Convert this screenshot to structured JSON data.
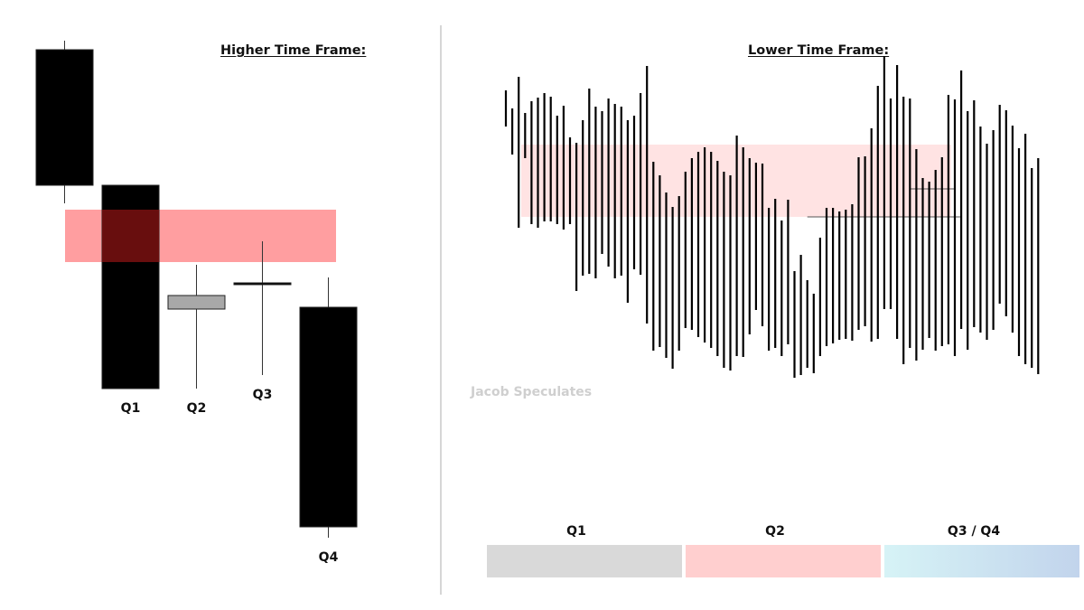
{
  "chart_data": [
    {
      "type": "candlestick",
      "title": "Higher Time Frame:",
      "y_direction": "price",
      "candles": [
        {
          "label": "",
          "open": 595,
          "close": 445,
          "high": 605,
          "low": 425,
          "color": "#000000"
        },
        {
          "label": "Q1",
          "open": 445,
          "close": 220,
          "high": 445,
          "low": 220,
          "color": "#000000"
        },
        {
          "label": "Q2",
          "open": 308,
          "close": 323,
          "high": 357,
          "low": 220,
          "color": "#a8a8a8"
        },
        {
          "label": "Q3",
          "open": 337,
          "close": 337,
          "high": 383,
          "low": 235,
          "color": "#000000"
        },
        {
          "label": "Q4",
          "open": 310,
          "close": 67,
          "high": 343,
          "low": 55,
          "color": "#000000"
        }
      ],
      "zone": {
        "from": 360,
        "to": 418,
        "color": "#ff9ea0"
      }
    },
    {
      "type": "bar",
      "title": "Lower Time Frame:",
      "y_direction": "price",
      "bars": [
        [
          560,
          600
        ],
        [
          529,
          580
        ],
        [
          448,
          615
        ],
        [
          525,
          575
        ],
        [
          452,
          588
        ],
        [
          448,
          592
        ],
        [
          455,
          597
        ],
        [
          455,
          593
        ],
        [
          452,
          572
        ],
        [
          446,
          583
        ],
        [
          452,
          548
        ],
        [
          378,
          542
        ],
        [
          395,
          567
        ],
        [
          397,
          602
        ],
        [
          392,
          582
        ],
        [
          419,
          577
        ],
        [
          405,
          591
        ],
        [
          392,
          585
        ],
        [
          395,
          582
        ],
        [
          365,
          567
        ],
        [
          402,
          572
        ],
        [
          396,
          597
        ],
        [
          342,
          627
        ],
        [
          312,
          521
        ],
        [
          316,
          506
        ],
        [
          304,
          487
        ],
        [
          292,
          471
        ],
        [
          312,
          483
        ],
        [
          337,
          510
        ],
        [
          335,
          525
        ],
        [
          327,
          532
        ],
        [
          321,
          537
        ],
        [
          315,
          532
        ],
        [
          306,
          522
        ],
        [
          293,
          510
        ],
        [
          290,
          506
        ],
        [
          306,
          550
        ],
        [
          305,
          537
        ],
        [
          330,
          525
        ],
        [
          357,
          520
        ],
        [
          339,
          519
        ],
        [
          312,
          470
        ],
        [
          315,
          480
        ],
        [
          306,
          456
        ],
        [
          319,
          479
        ],
        [
          282,
          400
        ],
        [
          285,
          418
        ],
        [
          293,
          390
        ],
        [
          287,
          375
        ],
        [
          306,
          437
        ],
        [
          317,
          470
        ],
        [
          320,
          470
        ],
        [
          324,
          466
        ],
        [
          325,
          468
        ],
        [
          323,
          474
        ],
        [
          335,
          526
        ],
        [
          339,
          527
        ],
        [
          322,
          558
        ],
        [
          325,
          605
        ],
        [
          358,
          638
        ],
        [
          358,
          591
        ],
        [
          325,
          628
        ],
        [
          297,
          593
        ],
        [
          315,
          591
        ],
        [
          301,
          535
        ],
        [
          313,
          503
        ],
        [
          326,
          499
        ],
        [
          312,
          512
        ],
        [
          317,
          526
        ],
        [
          319,
          595
        ],
        [
          306,
          590
        ],
        [
          336,
          622
        ],
        [
          313,
          577
        ],
        [
          338,
          589
        ],
        [
          332,
          560
        ],
        [
          324,
          541
        ],
        [
          335,
          556
        ],
        [
          364,
          584
        ],
        [
          350,
          578
        ],
        [
          332,
          561
        ],
        [
          306,
          536
        ],
        [
          297,
          552
        ],
        [
          293,
          514
        ],
        [
          286,
          525
        ]
      ],
      "zone": {
        "from": 460,
        "to": 540,
        "color": "#ffe3e3"
      },
      "level_lines": [
        {
          "y": 460,
          "from": 47,
          "to": 71
        },
        {
          "y": 491,
          "from": 63,
          "to": 70
        }
      ],
      "timeline": [
        {
          "label": "Q1",
          "color_start": "#d9d9d9",
          "color_end": "#d9d9d9"
        },
        {
          "label": "Q2",
          "color_start": "#ffcfcf",
          "color_end": "#ffcfcf"
        },
        {
          "label": "Q3 / Q4",
          "color_start": "#d6f3f6",
          "color_end": "#c2d4ec"
        }
      ]
    }
  ],
  "watermark": "Jacob Speculates"
}
